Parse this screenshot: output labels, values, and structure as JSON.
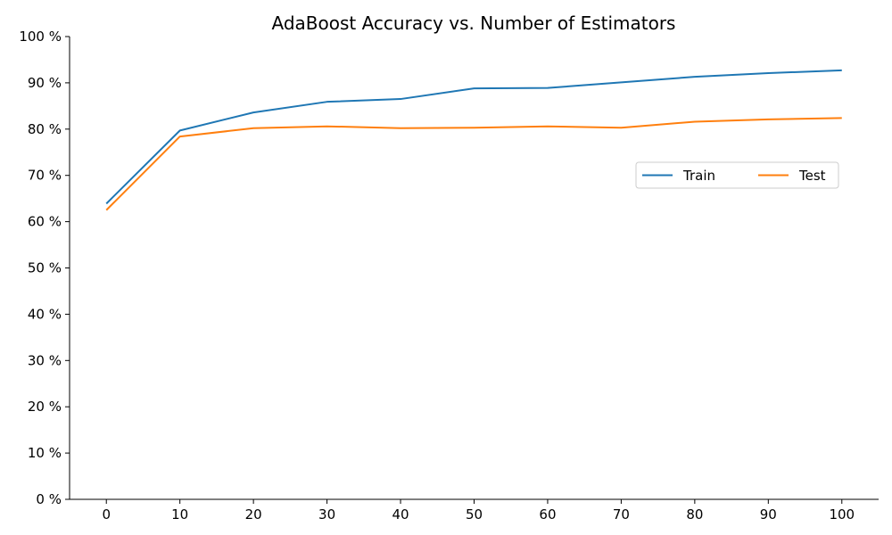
{
  "chart_data": {
    "type": "line",
    "title": "AdaBoost Accuracy vs. Number of Estimators",
    "xlabel": "",
    "ylabel": "",
    "x": [
      0,
      10,
      20,
      30,
      40,
      50,
      60,
      70,
      80,
      90,
      100
    ],
    "x_ticks": [
      "0",
      "10",
      "20",
      "30",
      "40",
      "50",
      "60",
      "70",
      "80",
      "90",
      "100"
    ],
    "y_ticks": [
      "0 %",
      "10 %",
      "20 %",
      "30 %",
      "40 %",
      "50 %",
      "60 %",
      "70 %",
      "80 %",
      "90 %",
      "100 %"
    ],
    "xlim": [
      -5,
      105
    ],
    "ylim": [
      0,
      100
    ],
    "grid": false,
    "legend_position": "right",
    "series": [
      {
        "name": "Train",
        "color": "#1f77b4",
        "values": [
          63.9,
          79.7,
          83.6,
          85.9,
          86.5,
          88.8,
          88.9,
          90.1,
          91.3,
          92.1,
          92.7
        ]
      },
      {
        "name": "Test",
        "color": "#ff7f0e",
        "values": [
          62.5,
          78.4,
          80.2,
          80.6,
          80.2,
          80.3,
          80.6,
          80.3,
          81.6,
          82.1,
          82.4
        ]
      }
    ]
  }
}
